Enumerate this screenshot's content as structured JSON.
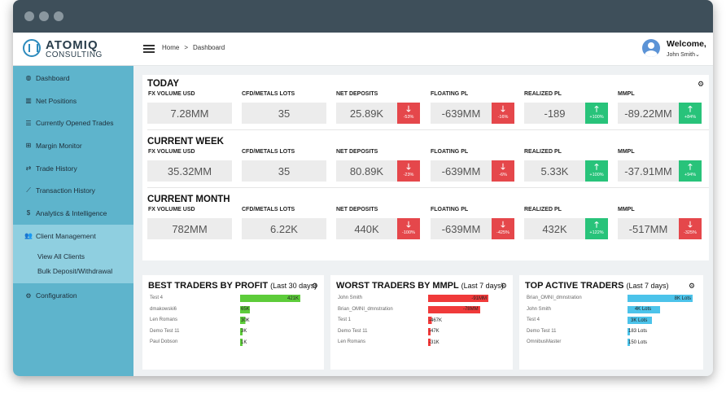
{
  "brand": {
    "line1": "ATOMIQ",
    "line2": "CONSULTING"
  },
  "sidebar": {
    "items": [
      {
        "label": "Dashboard",
        "icon": "gauge-icon",
        "glyph": "◍"
      },
      {
        "label": "Net Positions",
        "icon": "chart-bars-icon",
        "glyph": "▥"
      },
      {
        "label": "Currently Opened Trades",
        "icon": "list-icon",
        "glyph": "☰"
      },
      {
        "label": "Margin Monitor",
        "icon": "plus-square-icon",
        "glyph": "⊞"
      },
      {
        "label": "Trade History",
        "icon": "exchange-icon",
        "glyph": "⇄"
      },
      {
        "label": "Transaction History",
        "icon": "line-chart-icon",
        "glyph": "⟋"
      },
      {
        "label": "Analytics & Intelligence",
        "icon": "dollar-icon",
        "glyph": "$"
      },
      {
        "label": "Client Management",
        "icon": "users-icon",
        "glyph": "👥"
      }
    ],
    "sub_items": [
      {
        "label": "View All Clients"
      },
      {
        "label": "Bulk Deposit/Withdrawal"
      }
    ],
    "config": {
      "label": "Configuration",
      "icon": "gears-icon",
      "glyph": "⚙"
    }
  },
  "header": {
    "breadcrumb": {
      "home": "Home",
      "separator": ">",
      "current": "Dashboard"
    },
    "welcome": "Welcome,",
    "user": "John Smith",
    "user_caret": "⌄"
  },
  "stats": {
    "sections": [
      {
        "title": "TODAY",
        "metrics": [
          {
            "label": "FX VOLUME USD",
            "value": "7.28MM"
          },
          {
            "label": "CFD/METALS LOTS",
            "value": "35"
          },
          {
            "label": "NET DEPOSITS",
            "value": "25.89K",
            "badge": "-53%",
            "dir": "neg"
          },
          {
            "label": "FLOATING PL",
            "value": "-639MM",
            "badge": "-16%",
            "dir": "neg"
          },
          {
            "label": "REALIZED PL",
            "value": "-189",
            "badge": "+100%",
            "dir": "pos"
          },
          {
            "label": "MMPL",
            "value": "-89.22MM",
            "badge": "+84%",
            "dir": "pos"
          }
        ]
      },
      {
        "title": "CURRENT WEEK",
        "metrics": [
          {
            "label": "FX VOLUME USD",
            "value": "35.32MM"
          },
          {
            "label": "CFD/METALS LOTS",
            "value": "35"
          },
          {
            "label": "NET DEPOSITS",
            "value": "80.89K",
            "badge": "-23%",
            "dir": "neg"
          },
          {
            "label": "FLOATING PL",
            "value": "-639MM",
            "badge": "-6%",
            "dir": "neg"
          },
          {
            "label": "REALIZED PL",
            "value": "5.33K",
            "badge": "+100%",
            "dir": "pos"
          },
          {
            "label": "MMPL",
            "value": "-37.91MM",
            "badge": "+94%",
            "dir": "pos"
          }
        ]
      },
      {
        "title": "CURRENT MONTH",
        "metrics": [
          {
            "label": "FX VOLUME USD",
            "value": "782MM"
          },
          {
            "label": "CFD/METALS LOTS",
            "value": "6.22K"
          },
          {
            "label": "NET DEPOSITS",
            "value": "440K",
            "badge": "-100%",
            "dir": "neg"
          },
          {
            "label": "FLOATING PL",
            "value": "-639MM",
            "badge": "-425%",
            "dir": "neg"
          },
          {
            "label": "REALIZED PL",
            "value": "432K",
            "badge": "+122%",
            "dir": "pos"
          },
          {
            "label": "MMPL",
            "value": "-517MM",
            "badge": "-325%",
            "dir": "neg"
          }
        ]
      }
    ]
  },
  "panels": [
    {
      "title": "BEST TRADERS BY PROFIT",
      "subtitle": "(Last 30 days)",
      "color": "#5dcc3a",
      "rows": [
        {
          "name": "Test 4",
          "label": "421K",
          "fraction": 1.0
        },
        {
          "name": "dmakowski6",
          "label": "65K",
          "fraction": 0.16
        },
        {
          "name": "Len Romans",
          "label": "30K",
          "fraction": 0.09
        },
        {
          "name": "Demo Test 11",
          "label": "3K",
          "fraction": 0.04
        },
        {
          "name": "Paul Dobson",
          "label": "1K",
          "fraction": 0.03
        }
      ]
    },
    {
      "title": "WORST TRADERS BY MMPL",
      "subtitle": "(Last 7 days)",
      "color": "#f03a3a",
      "rows": [
        {
          "name": "John Smith",
          "label": "-91MM",
          "fraction": 1.0
        },
        {
          "name": "Brian_OMNI_dmnstration",
          "label": "-78MM",
          "fraction": 0.86
        },
        {
          "name": "Test 1",
          "label": "-467K",
          "fraction": 0.06
        },
        {
          "name": "Demo Test 11",
          "label": "-47K",
          "fraction": 0.04
        },
        {
          "name": "Len Romans",
          "label": "-31K",
          "fraction": 0.03
        }
      ]
    },
    {
      "title": "TOP ACTIVE TRADERS",
      "subtitle": "(Last 7 days)",
      "color": "#4cc3ea",
      "rows": [
        {
          "name": "Brian_OMNI_dmnstration",
          "label": "8K Lots",
          "fraction": 1.0
        },
        {
          "name": "John Smith",
          "label": "4K Lots",
          "fraction": 0.5
        },
        {
          "name": "Test 4",
          "label": "3K Lots",
          "fraction": 0.38
        },
        {
          "name": "Demo Test 11",
          "label": "183 Lots",
          "fraction": 0.02
        },
        {
          "name": "OmnibusMaster",
          "label": "150 Lots",
          "fraction": 0.02
        }
      ]
    }
  ],
  "icons": {
    "gear": "⚙",
    "down": "🡓",
    "up": "🡑"
  }
}
